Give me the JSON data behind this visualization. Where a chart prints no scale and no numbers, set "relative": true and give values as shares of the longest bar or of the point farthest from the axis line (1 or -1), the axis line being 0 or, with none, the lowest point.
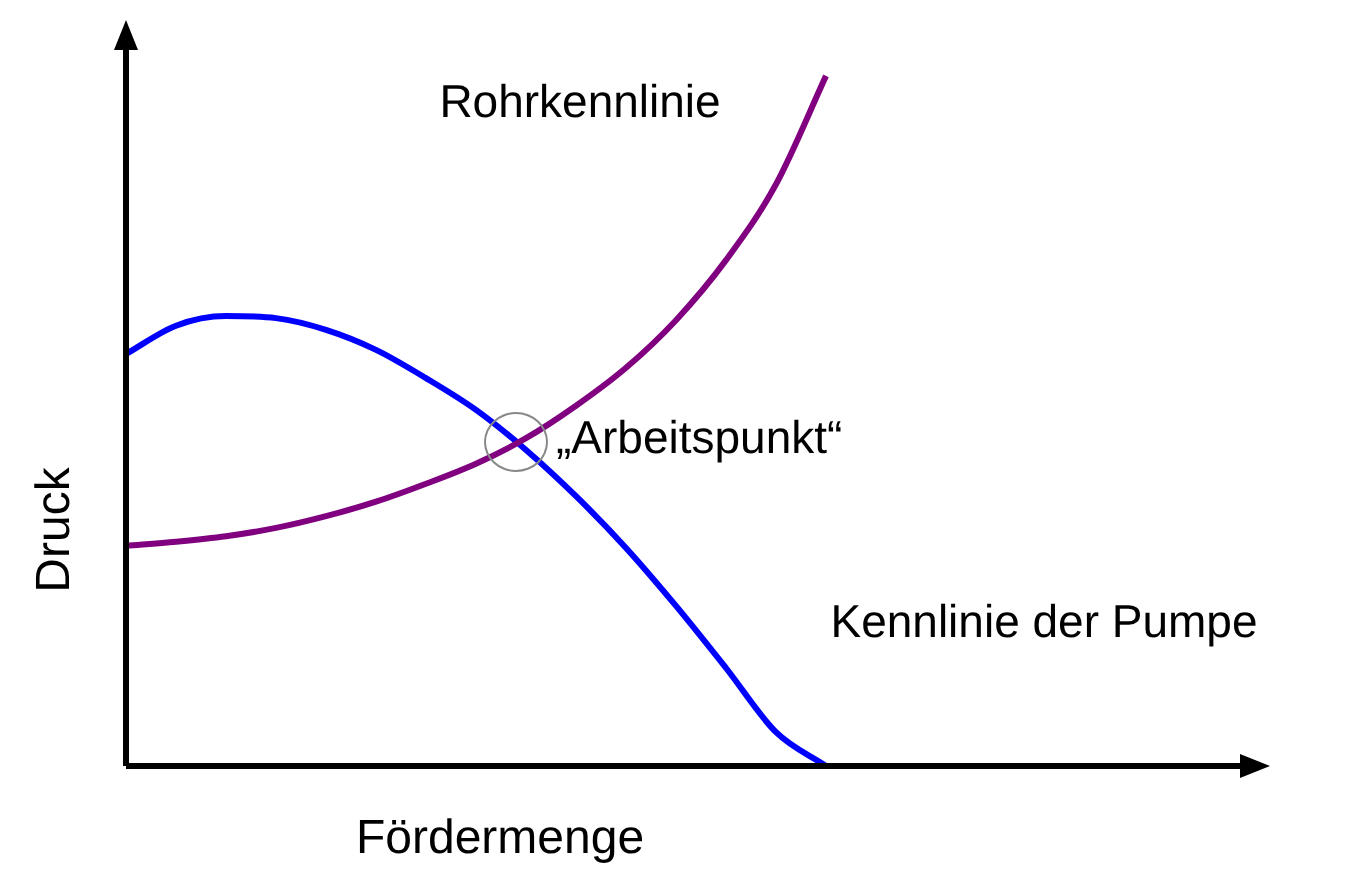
{
  "chart_data": {
    "type": "line",
    "relative": true,
    "xlabel": "Fördermenge",
    "ylabel": "Druck",
    "annotations": [
      "„Arbeitspunkt“"
    ],
    "categories": [
      null,
      null,
      null,
      null,
      null,
      null,
      null,
      null,
      null,
      null,
      null,
      null,
      null,
      null,
      null,
      null,
      null,
      null,
      null,
      null,
      null,
      null,
      null
    ],
    "series": [
      {
        "name": "Rohrkennlinie",
        "color": "#800080",
        "values": [
          0.319,
          0.325,
          0.333,
          0.345,
          0.362,
          0.383,
          0.409,
          0.438,
          0.475,
          0.522,
          0.577,
          0.646,
          0.733,
          0.843,
          1,
          null,
          null,
          null,
          null,
          null,
          null,
          null,
          null
        ]
      },
      {
        "name": "Kennlinie der Pumpe",
        "color": "#0000ff",
        "values": [
          0.597,
          0.638,
          0.652,
          0.649,
          0.632,
          0.603,
          0.562,
          0.516,
          0.458,
          0.391,
          0.316,
          0.232,
          0.142,
          0.049,
          0,
          null,
          null,
          null,
          null,
          null,
          null,
          null,
          null
        ]
      }
    ]
  }
}
